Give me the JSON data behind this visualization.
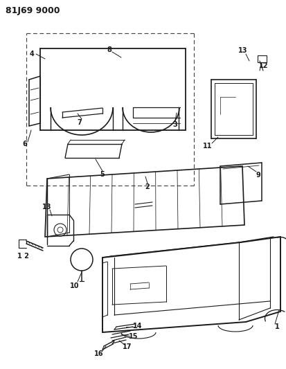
{
  "title": "81J69 9000",
  "bg": "#ffffff",
  "lc": "#1a1a1a",
  "dc": "#444444"
}
